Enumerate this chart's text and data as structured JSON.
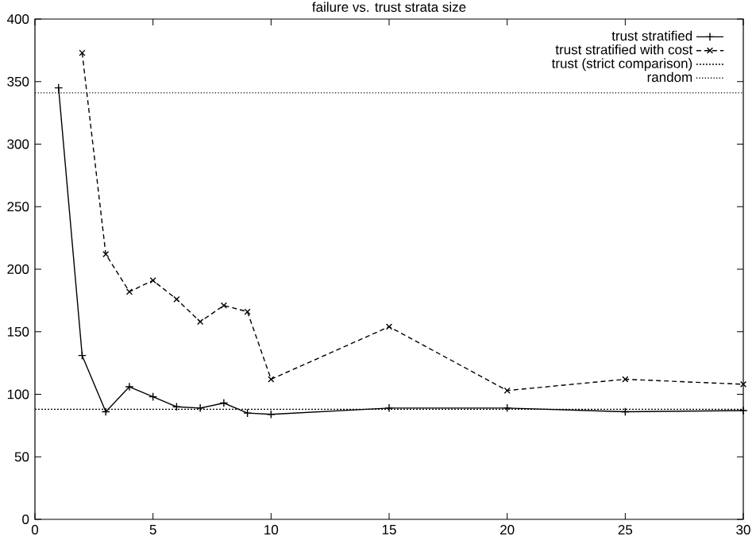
{
  "chart_data": {
    "type": "line",
    "title": "failure vs. trust strata size",
    "legend": "top right",
    "grid": false,
    "xlim": [
      0,
      30
    ],
    "ylim": [
      0,
      400
    ],
    "xticks": [
      0,
      5,
      10,
      15,
      20,
      25,
      30
    ],
    "yticks": [
      0,
      50,
      100,
      150,
      200,
      250,
      300,
      350,
      400
    ],
    "series": [
      {
        "name": "trust stratified",
        "color": "#000000",
        "marker": "cross",
        "line_style": "solid",
        "x": [
          1,
          2,
          3,
          4,
          5,
          6,
          7,
          8,
          9,
          10,
          15,
          20,
          25,
          30
        ],
        "values": [
          345,
          131,
          86,
          106,
          98,
          90,
          89,
          93,
          85,
          84,
          89,
          89,
          86,
          87
        ]
      },
      {
        "name": "trust stratified with cost",
        "color": "#000000",
        "marker": "x",
        "line_style": "dashed",
        "x": [
          2,
          3,
          4,
          5,
          6,
          7,
          8,
          9,
          10,
          15,
          20,
          25,
          30
        ],
        "values": [
          373,
          212,
          182,
          191,
          176,
          158,
          171,
          166,
          112,
          154,
          103,
          112,
          108
        ]
      },
      {
        "name": "trust (strict comparison)",
        "color": "#000000",
        "marker": "none",
        "line_style": "dotted",
        "x": [
          0,
          30
        ],
        "values": [
          88,
          88
        ]
      },
      {
        "name": "random",
        "color": "#000000",
        "marker": "none",
        "line_style": "loosely dotted",
        "x": [
          0,
          30
        ],
        "values": [
          341,
          341
        ]
      }
    ]
  }
}
